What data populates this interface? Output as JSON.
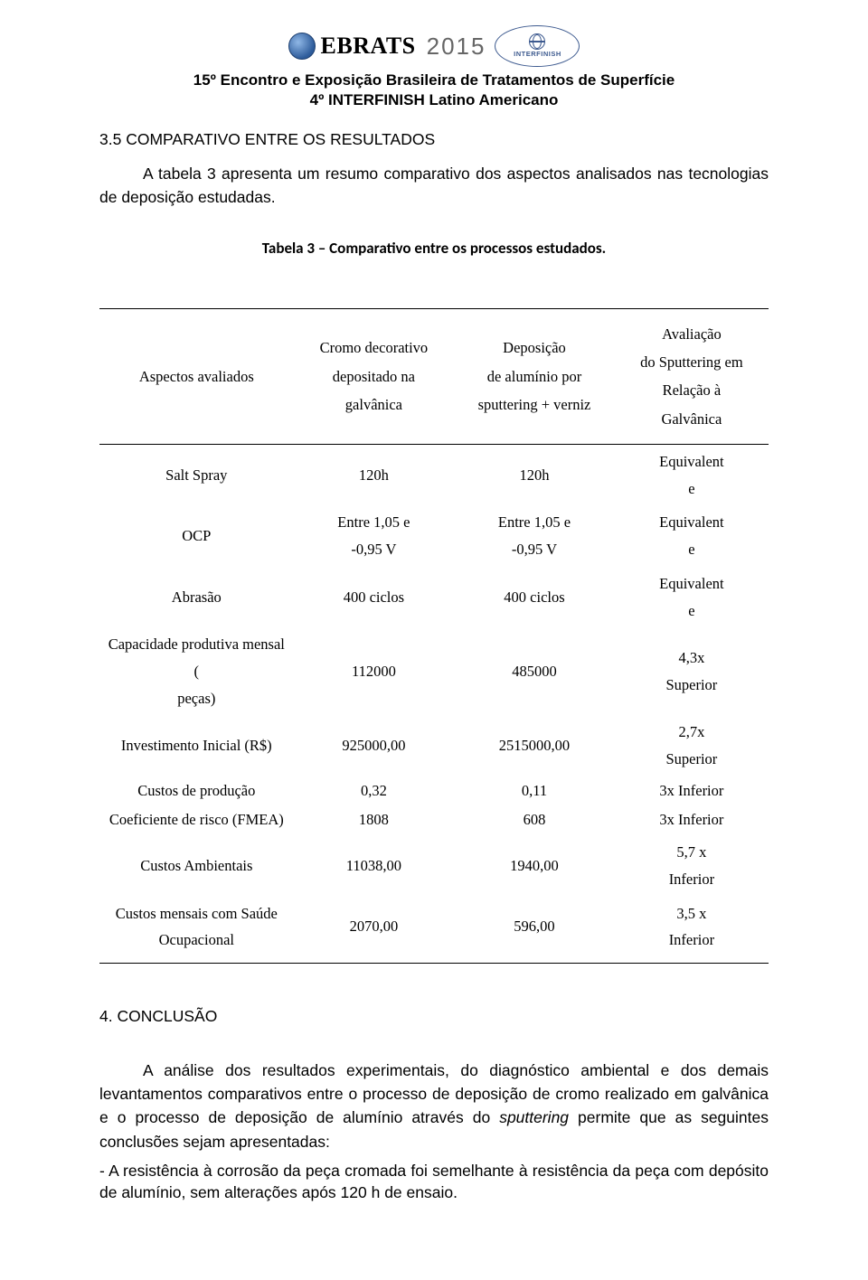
{
  "logos": {
    "ebrats_text": "EBRATS",
    "ebrats_year": "2015",
    "interfinish_label": "INTERFINISH"
  },
  "header": {
    "line1": "15º Encontro e Exposição Brasileira de Tratamentos de Superfície",
    "line2": "4º INTERFINISH Latino Americano"
  },
  "section_title": "3.5 COMPARATIVO ENTRE OS RESULTADOS",
  "intro": "A tabela 3 apresenta um resumo comparativo dos aspectos analisados nas tecnologias de deposição estudadas.",
  "table": {
    "caption": "Tabela 3 – Comparativo entre os processos estudados.",
    "columns": [
      "Aspectos avaliados",
      "Cromo decorativo depositado na galvânica",
      "Deposição de alumínio por sputtering + verniz",
      "Avaliação do Sputtering em Relação à Galvânica"
    ],
    "col_widths_pct": [
      29,
      24,
      24,
      23
    ],
    "rows": [
      {
        "cls": "tall",
        "c0": "Salt Spray",
        "c1": "120h",
        "c2": "120h",
        "c3": "Equivalent\ne"
      },
      {
        "cls": "tall",
        "c0": "OCP",
        "c1": "Entre 1,05 e\n-0,95 V",
        "c2": "Entre 1,05 e\n-0,95 V",
        "c3": "Equivalent\ne"
      },
      {
        "cls": "tall",
        "c0": "Abrasão",
        "c1": "400 ciclos",
        "c2": "400 ciclos",
        "c3": "Equivalent\ne"
      },
      {
        "cls": "med",
        "c0": "Capacidade produtiva mensal (\npeças)",
        "c1": "112000",
        "c2": "485000",
        "c3": "4,3x\nSuperior"
      },
      {
        "cls": "med",
        "c0": "Investimento Inicial (R$)",
        "c1": "925000,00",
        "c2": "2515000,00",
        "c3": "2,7x\nSuperior"
      },
      {
        "cls": "short",
        "c0": "Custos de produção",
        "c1": "0,32",
        "c2": "0,11",
        "c3": "3x Inferior"
      },
      {
        "cls": "short",
        "c0": "Coeficiente de risco (FMEA)",
        "c1": "1808",
        "c2": "608",
        "c3": "3x Inferior"
      },
      {
        "cls": "med",
        "c0": "Custos Ambientais",
        "c1": "11038,00",
        "c2": "1940,00",
        "c3": "5,7 x\nInferior"
      },
      {
        "cls": "med",
        "c0": "Custos mensais com Saúde\nOcupacional",
        "c1": "2070,00",
        "c2": "596,00",
        "c3": "3,5 x\nInferior"
      }
    ]
  },
  "conclusion": {
    "title": "4. CONCLUSÃO",
    "body": "A análise dos resultados experimentais, do diagnóstico ambiental e dos demais levantamentos comparativos entre o processo de deposição de cromo realizado em galvânica e o processo de deposição de alumínio através do sputtering permite que as seguintes conclusões sejam apresentadas:",
    "italic_word": "sputtering",
    "bullet": "- A resistência à corrosão da peça cromada foi semelhante à resistência da peça com depósito de alumínio, sem alterações após 120 h de ensaio."
  }
}
